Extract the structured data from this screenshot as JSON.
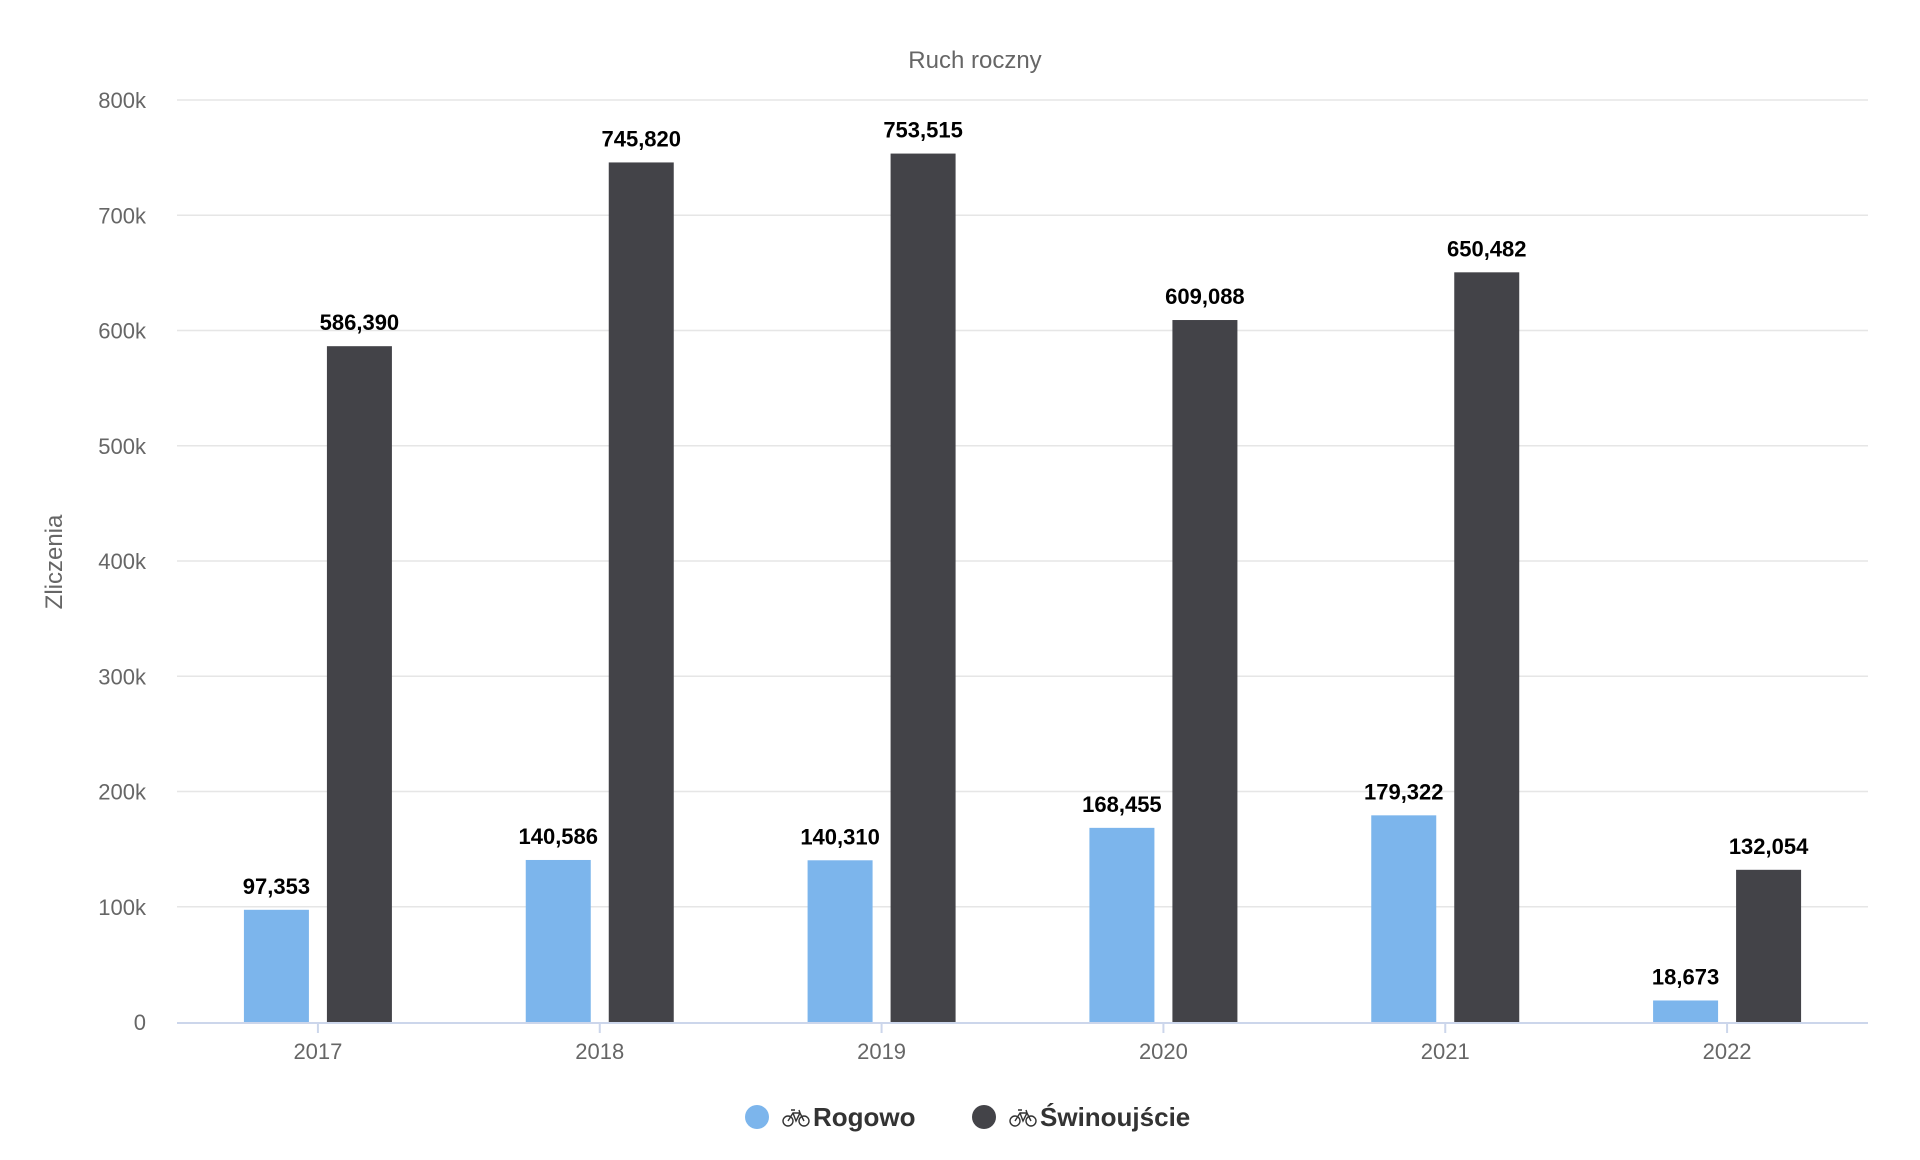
{
  "chart_data": {
    "type": "bar",
    "title": "Ruch roczny",
    "xlabel": "",
    "ylabel": "Zliczenia",
    "ylim": [
      0,
      800000
    ],
    "yticks": [
      0,
      100000,
      200000,
      300000,
      400000,
      500000,
      600000,
      700000,
      800000
    ],
    "ytick_labels": [
      "0",
      "100k",
      "200k",
      "300k",
      "400k",
      "500k",
      "600k",
      "700k",
      "800k"
    ],
    "grid": true,
    "legend_position": "bottom-center",
    "categories": [
      "2017",
      "2018",
      "2019",
      "2020",
      "2021",
      "2022"
    ],
    "series": [
      {
        "name": "Rogowo",
        "color": "#7cb5ec",
        "values": [
          97353,
          140586,
          140310,
          168455,
          179322,
          18673
        ],
        "labels": [
          "97,353",
          "140,586",
          "140,310",
          "168,455",
          "179,322",
          "18,673"
        ]
      },
      {
        "name": "Świnoujście",
        "color": "#434348",
        "values": [
          586390,
          745820,
          753515,
          609088,
          650482,
          132054
        ],
        "labels": [
          "586,390",
          "745,820",
          "753,515",
          "609,088",
          "650,482",
          "132,054"
        ]
      }
    ],
    "legend_icon": "bicycle-icon"
  }
}
